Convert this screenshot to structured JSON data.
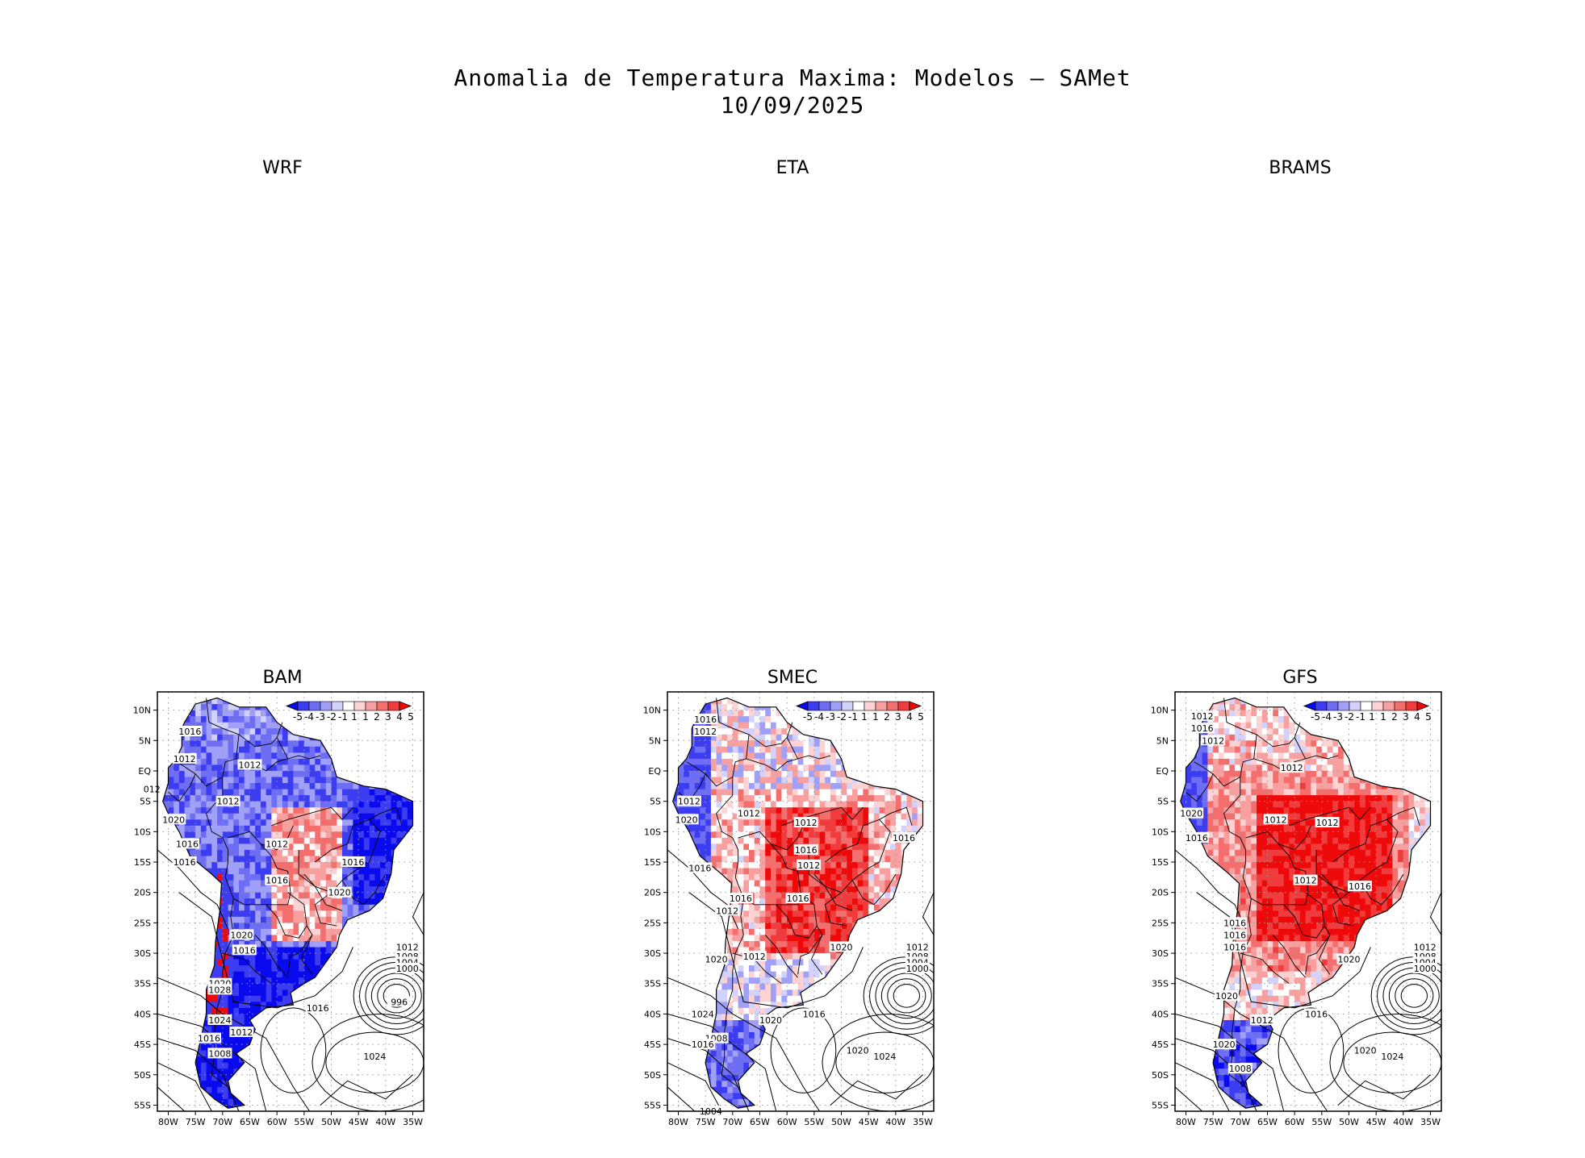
{
  "chart_data": {
    "type": "heatmap",
    "title": "Anomalia de Temperatura Maxima: Modelos — SAMet",
    "subtitle": "10/09/2025",
    "empty_panels": [
      "WRF",
      "ETA",
      "BRAMS"
    ],
    "colorbar": {
      "levels": [
        "-5",
        "-4",
        "-3",
        "-2",
        "-1",
        "1",
        "1",
        "2",
        "3",
        "4",
        "5"
      ],
      "colors": [
        "#0a0aee",
        "#3c3cf0",
        "#6e6ef4",
        "#a0a0f8",
        "#d2d2fc",
        "#ffffff",
        "#fcd2d2",
        "#f8a0a0",
        "#f46e6e",
        "#f03c3c",
        "#ee0a0a"
      ]
    },
    "x_ticks": [
      "80W",
      "75W",
      "70W",
      "65W",
      "60W",
      "55W",
      "50W",
      "45W",
      "40W",
      "35W"
    ],
    "y_ticks": [
      "10N",
      "5N",
      "EQ",
      "5S",
      "10S",
      "15S",
      "20S",
      "25S",
      "30S",
      "35S",
      "40S",
      "45S",
      "50S",
      "55S"
    ],
    "xlim": [
      -82,
      -33
    ],
    "ylim": [
      -56,
      13
    ],
    "panels": [
      {
        "name": "BAM",
        "dominant": "cold",
        "isobar_labels": [
          "1016",
          "1012",
          "1012",
          "012",
          "1012",
          "1020",
          "1016",
          "1016",
          "1012",
          "1016",
          "1016",
          "1020",
          "1020",
          "1016",
          "1020",
          "1028",
          "1024",
          "1012",
          "1016",
          "1008",
          "1012",
          "1008",
          "1004",
          "1000",
          "996",
          "1016",
          "1024"
        ]
      },
      {
        "name": "SMEC",
        "dominant": "warm",
        "isobar_labels": [
          "1016",
          "1012",
          "1012",
          "1020",
          "1012",
          "1012",
          "1016",
          "1012",
          "1016",
          "1016",
          "1016",
          "1016",
          "1012",
          "1020",
          "1020",
          "1024",
          "1012",
          "1020",
          "1016",
          "1008",
          "1016",
          "1004",
          "1012",
          "1008",
          "1004",
          "1000",
          "1020",
          "1024"
        ]
      },
      {
        "name": "GFS",
        "dominant": "warm",
        "isobar_labels": [
          "1012",
          "1016",
          "1012",
          "1012",
          "1020",
          "1016",
          "1012",
          "1012",
          "1012",
          "1016",
          "1016",
          "1016",
          "1016",
          "1020",
          "1020",
          "1020",
          "1012",
          "1016",
          "1008",
          "1012",
          "1008",
          "1004",
          "1000",
          "1020",
          "1024"
        ]
      }
    ]
  }
}
